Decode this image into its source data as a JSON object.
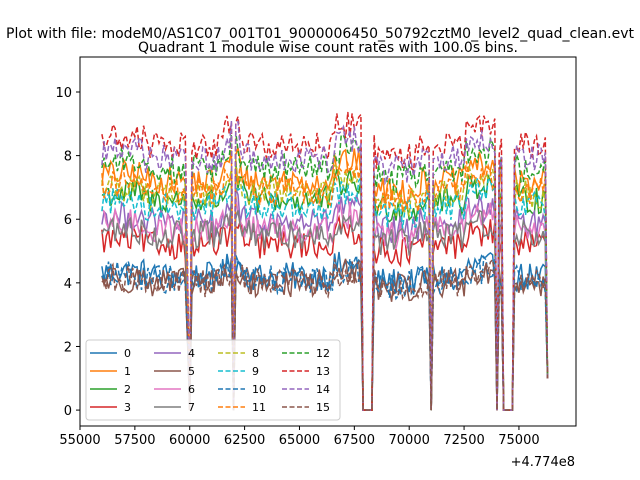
{
  "chart_data": {
    "type": "line",
    "suptitle": "Plot with file: modeM0/AS1C07_001T01_9000006450_50792cztM0_level2_quad_clean.evt",
    "title": "Quadrant 1 module wise count rates with 100.0s bins.",
    "xlabel": "",
    "ylabel": "",
    "x_offset_label": "+4.774e8",
    "xlim": [
      55000,
      77600
    ],
    "ylim": [
      -0.5,
      11.1
    ],
    "x_ticks": [
      55000,
      57500,
      60000,
      62500,
      65000,
      67500,
      70000,
      72500,
      75000
    ],
    "x_tick_labels": [
      "55000",
      "57500",
      "60000",
      "62500",
      "65000",
      "67500",
      "70000",
      "72500",
      "75000"
    ],
    "y_ticks": [
      0,
      2,
      4,
      6,
      8,
      10
    ],
    "y_tick_labels": [
      "0",
      "2",
      "4",
      "6",
      "8",
      "10"
    ],
    "grid": false,
    "legend_location": "lower-left",
    "legend_columns": 4,
    "x_start": 56000,
    "x_step": 100,
    "x_end": 76300,
    "gaps": [
      [
        59900,
        60000
      ],
      [
        61950,
        62050
      ],
      [
        67900,
        68300
      ],
      [
        70950,
        71000
      ],
      [
        73950,
        74050
      ],
      [
        74300,
        74700
      ],
      [
        76250,
        76300
      ]
    ],
    "series": [
      {
        "name": "0",
        "color": "#1f77b4",
        "dash": "solid",
        "base": 4.2
      },
      {
        "name": "1",
        "color": "#ff7f0e",
        "dash": "solid",
        "base": 7.2
      },
      {
        "name": "2",
        "color": "#2ca02c",
        "dash": "solid",
        "base": 6.6
      },
      {
        "name": "3",
        "color": "#d62728",
        "dash": "solid",
        "base": 5.2
      },
      {
        "name": "4",
        "color": "#9467bd",
        "dash": "solid",
        "base": 5.9
      },
      {
        "name": "5",
        "color": "#8c564b",
        "dash": "solid",
        "base": 4.0
      },
      {
        "name": "6",
        "color": "#e377c2",
        "dash": "solid",
        "base": 5.7
      },
      {
        "name": "7",
        "color": "#7f7f7f",
        "dash": "solid",
        "base": 5.5
      },
      {
        "name": "8",
        "color": "#bcbd22",
        "dash": "dashed",
        "base": 6.8
      },
      {
        "name": "9",
        "color": "#17becf",
        "dash": "dashed",
        "base": 6.4
      },
      {
        "name": "10",
        "color": "#1f77b4",
        "dash": "dashed",
        "base": 4.1
      },
      {
        "name": "11",
        "color": "#ff7f0e",
        "dash": "dashed",
        "base": 6.9
      },
      {
        "name": "12",
        "color": "#2ca02c",
        "dash": "dashed",
        "base": 7.6
      },
      {
        "name": "13",
        "color": "#d62728",
        "dash": "dashed",
        "base": 8.3
      },
      {
        "name": "14",
        "color": "#9467bd",
        "dash": "dashed",
        "base": 7.9
      },
      {
        "name": "15",
        "color": "#8c564b",
        "dash": "dashed",
        "base": 4.0
      }
    ]
  }
}
